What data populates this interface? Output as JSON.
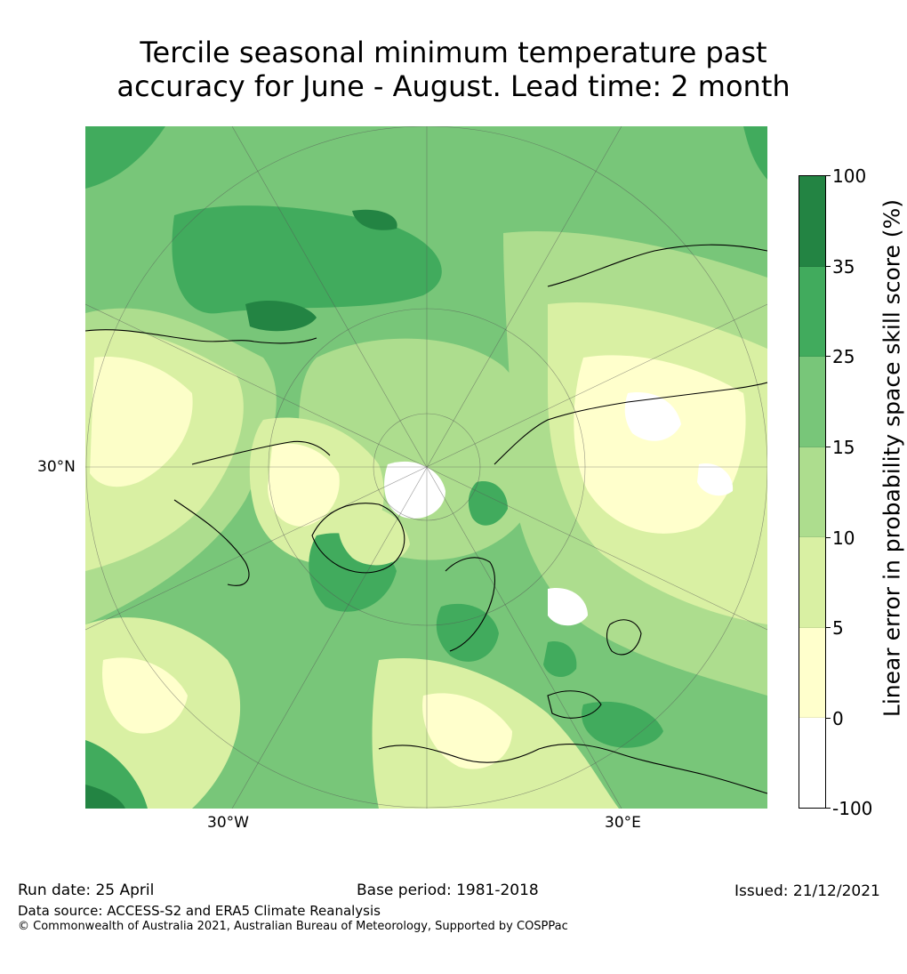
{
  "title": {
    "line1": "Tercile seasonal minimum temperature past",
    "line2": "accuracy for June - August. Lead time: 2 month"
  },
  "map": {
    "lat_label": "30°N",
    "lon_labels": [
      "30°W",
      "30°E"
    ],
    "projection": "north-polar-stereographic",
    "colors": {
      "none": "#ffffff",
      "band_0_5": "#ffffcc",
      "band_5_10": "#d9f0a3",
      "band_10_15": "#addd8e",
      "band_15_25": "#78c679",
      "band_25_35": "#41ab5d",
      "band_35_100": "#238443",
      "coast": "#000000",
      "grid": "#555555"
    }
  },
  "colorbar": {
    "title": "Linear error in probability space skill score (%)",
    "ticks": [
      "100",
      "35",
      "25",
      "15",
      "10",
      "5",
      "0",
      "-100"
    ],
    "band_colors": [
      "#238443",
      "#41ab5d",
      "#78c679",
      "#addd8e",
      "#d9f0a3",
      "#ffffcc",
      "#ffffff"
    ]
  },
  "footer": {
    "run_date": "Run date: 25 April",
    "base_period": "Base period: 1981-2018",
    "issued": "Issued: 21/12/2021",
    "data_source": "Data source: ACCESS-S2 and ERA5 Climate Reanalysis",
    "copyright": "© Commonwealth of Australia 2021, Australian Bureau of Meteorology, Supported by COSPPac"
  }
}
